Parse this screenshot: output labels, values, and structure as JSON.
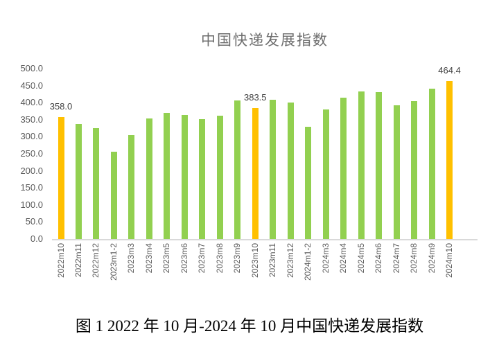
{
  "title": "中国快递发展指数",
  "caption": "图 1 2022 年 10 月-2024 年 10 月中国快递发展指数",
  "chart_data": {
    "type": "bar",
    "title": "中国快递发展指数",
    "xlabel": "",
    "ylabel": "",
    "categories": [
      "2022m10",
      "2022m11",
      "2022m12",
      "2023m1-2",
      "2023m3",
      "2023m4",
      "2023m5",
      "2023m6",
      "2023m7",
      "2023m8",
      "2023m9",
      "2023m10",
      "2023m11",
      "2023m12",
      "2024m1-2",
      "2024m3",
      "2024m4",
      "2024m5",
      "2024m6",
      "2024m7",
      "2024m8",
      "2024m9",
      "2024m10"
    ],
    "values": [
      358.0,
      337,
      325,
      256,
      305,
      354,
      369,
      364,
      352,
      361,
      406,
      383.5,
      408,
      400,
      329,
      380,
      415,
      433,
      431,
      393,
      404,
      441,
      464.4
    ],
    "labeled_points": [
      {
        "index": 0,
        "label": "358.0"
      },
      {
        "index": 11,
        "label": "383.5"
      },
      {
        "index": 22,
        "label": "464.4"
      }
    ],
    "highlight_indices": [
      0,
      11,
      22
    ],
    "ylim": [
      0,
      500
    ],
    "ytick_step": 50,
    "ytick_labels": [
      "0.0",
      "50.0",
      "100.0",
      "150.0",
      "200.0",
      "250.0",
      "300.0",
      "350.0",
      "400.0",
      "450.0",
      "500.0"
    ],
    "grid": false,
    "legend": "none",
    "colors": {
      "bar_default": "#92D050",
      "bar_highlight": "#FFC000",
      "axis_line": "#D9D9D9",
      "tick_text": "#595959",
      "title_text": "#6E6E6E",
      "data_label_text": "#404040",
      "caption_text": "#000000",
      "background": "#FFFFFF"
    }
  }
}
